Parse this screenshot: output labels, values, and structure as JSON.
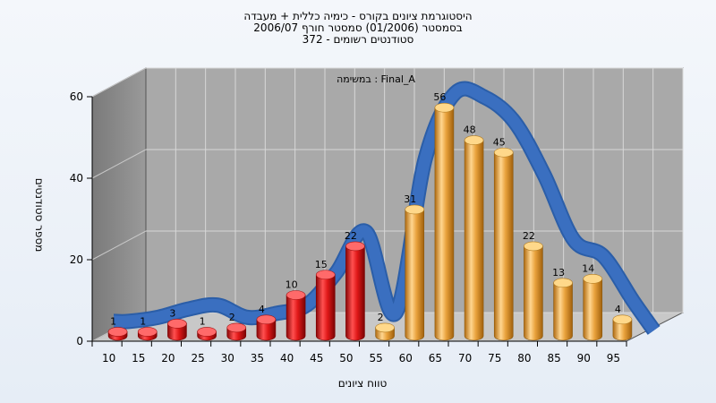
{
  "chart_data": {
    "type": "bar",
    "title_lines": [
      "היסטוגרמת ציונים בקורס - כימיה כללית + מעבדה",
      "בסמסטר  (01/2006)  סמסטר חורף 2006/07",
      "סטודנטים רשומים - 372"
    ],
    "annotation": "במשימה : Final_A",
    "xlabel": "טווח ציונים",
    "ylabel": "מספר סטודנטים",
    "ylim": [
      0,
      60
    ],
    "y_ticks": [
      0,
      20,
      40,
      60
    ],
    "categories": [
      "10",
      "15",
      "20",
      "25",
      "30",
      "35",
      "40",
      "45",
      "50",
      "55",
      "60",
      "65",
      "70",
      "75",
      "80",
      "85",
      "90",
      "95"
    ],
    "values": [
      1,
      1,
      3,
      1,
      2,
      4,
      10,
      15,
      22,
      2,
      31,
      56,
      48,
      45,
      22,
      13,
      14,
      4
    ],
    "bar_colors": [
      "red",
      "red",
      "red",
      "red",
      "red",
      "red",
      "red",
      "red",
      "red",
      "orange",
      "orange",
      "orange",
      "orange",
      "orange",
      "orange",
      "orange",
      "orange",
      "orange"
    ],
    "curve_values": [
      2,
      3,
      5,
      6,
      3,
      4,
      6,
      14,
      24,
      4,
      42,
      58,
      57,
      51,
      38,
      22,
      18,
      7
    ],
    "colors": {
      "red": "#e01818",
      "orange": "#e9a23c",
      "curve": "#3a6fc0"
    },
    "grid": true,
    "legend": "none"
  }
}
